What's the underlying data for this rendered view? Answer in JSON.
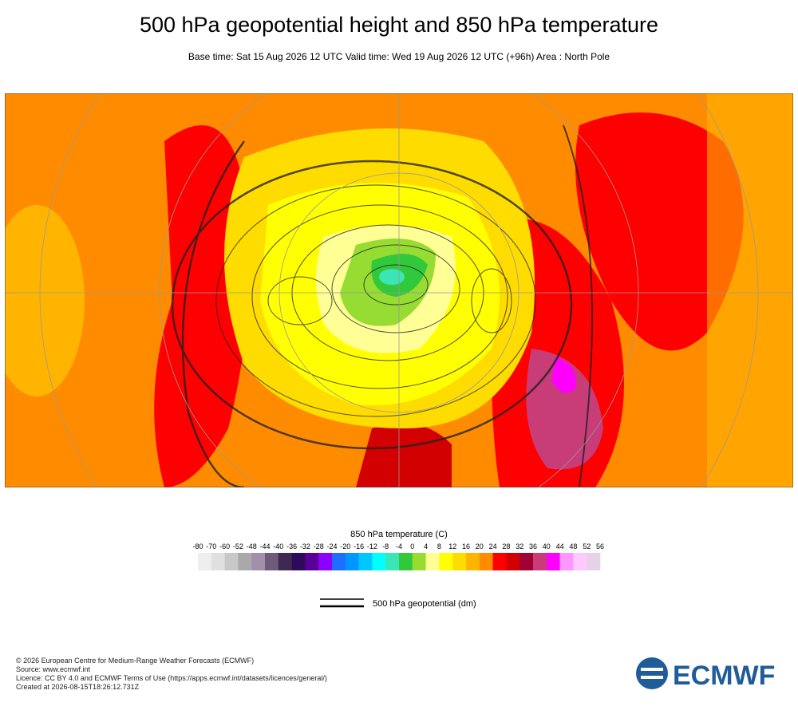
{
  "header": {
    "title": "500 hPa geopotential height and 850 hPa temperature",
    "subtitle": "Base time: Sat 15 Aug 2026 12 UTC Valid time: Wed 19 Aug 2026 12 UTC (+96h) Area : North Pole"
  },
  "colorbar": {
    "title": "850 hPa temperature (C)",
    "ticks": [
      -80,
      -70,
      -60,
      -52,
      -48,
      -44,
      -40,
      -36,
      -32,
      -28,
      -24,
      -20,
      -16,
      -12,
      -8,
      -4,
      0,
      4,
      8,
      12,
      16,
      20,
      24,
      28,
      32,
      36,
      40,
      44,
      48,
      52,
      56
    ],
    "colors": [
      "#eeeeee",
      "#e0e0e0",
      "#c8c8c8",
      "#a9a9a9",
      "#a48fa8",
      "#6e5a7a",
      "#3c2850",
      "#2d0a5a",
      "#5a0096",
      "#8c00ff",
      "#1e6eff",
      "#0096ff",
      "#00c8ff",
      "#00ffff",
      "#3ce6b4",
      "#32c83c",
      "#96dc32",
      "#ffff96",
      "#ffff00",
      "#ffdc00",
      "#ffb400",
      "#ff8c00",
      "#ff0000",
      "#d20000",
      "#a00032",
      "#c83c78",
      "#ff00ff",
      "#ff96ff",
      "#ffc8ff",
      "#e6d2e6"
    ]
  },
  "contour_legend": {
    "label": "500 hPa geopotential (dm)"
  },
  "footer": {
    "lines": [
      "© 2026 European Centre for Medium-Range Weather Forecasts (ECMWF)",
      "Source: www.ecmwf.int",
      "Licence: CC BY 4.0 and ECMWF Terms of Use (https://apps.ecmwf.int/datasets/licences/general/)",
      "Created at 2026-08-15T18:26:12.731Z"
    ],
    "logo": "ECMWF"
  }
}
